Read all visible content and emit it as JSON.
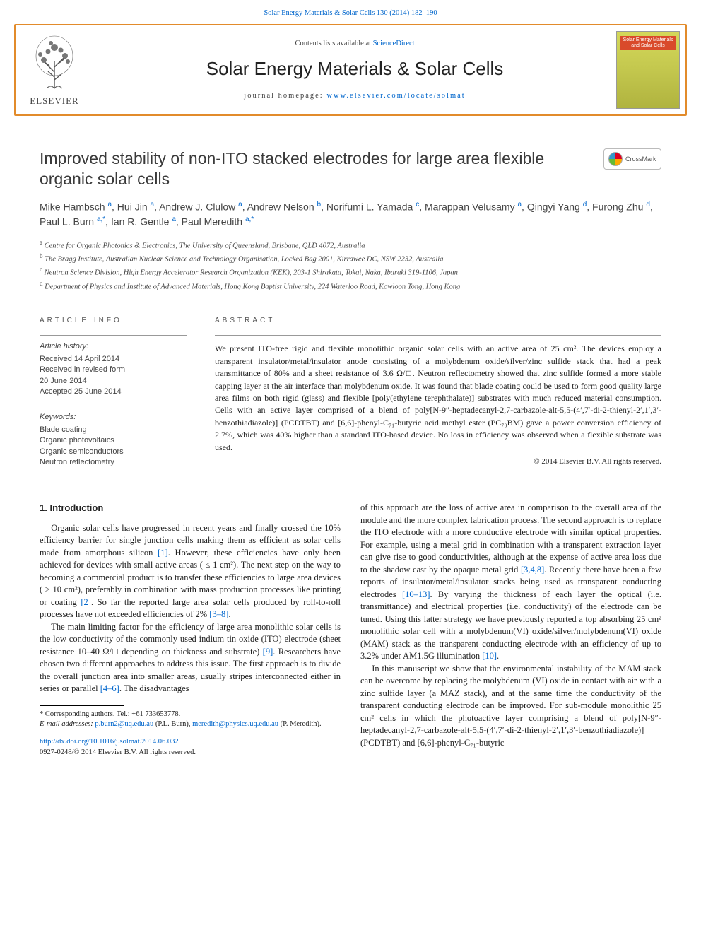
{
  "topLink": {
    "prefix": "",
    "linkText": "Solar Energy Materials & Solar Cells 130 (2014) 182–190"
  },
  "header": {
    "contentsPrefix": "Contents lists available at ",
    "contentsLink": "ScienceDirect",
    "journalName": "Solar Energy Materials & Solar Cells",
    "homepagePrefix": "journal homepage: ",
    "homepageLink": "www.elsevier.com/locate/solmat",
    "elsevierWordmark": "ELSEVIER",
    "coverLabel": "Solar Energy Materials and Solar Cells"
  },
  "article": {
    "title": "Improved stability of non-ITO stacked electrodes for large area flexible organic solar cells",
    "crossmarkLabel": "CrossMark",
    "authorsHtml": "Mike Hambsch <sup>a</sup>, Hui Jin <sup>a</sup>, Andrew J. Clulow <sup>a</sup>, Andrew Nelson <sup>b</sup>, Norifumi L. Yamada <sup>c</sup>, Marappan Velusamy <sup>a</sup>, Qingyi Yang <sup>d</sup>, Furong Zhu <sup>d</sup>, Paul L. Burn <sup>a,*</sup>, Ian R. Gentle <sup>a</sup>, Paul Meredith <sup>a,*</sup>",
    "affiliations": [
      {
        "sup": "a",
        "text": "Centre for Organic Photonics & Electronics, The University of Queensland, Brisbane, QLD 4072, Australia"
      },
      {
        "sup": "b",
        "text": "The Bragg Institute, Australian Nuclear Science and Technology Organisation, Locked Bag 2001, Kirrawee DC, NSW 2232, Australia"
      },
      {
        "sup": "c",
        "text": "Neutron Science Division, High Energy Accelerator Research Organization (KEK), 203-1 Shirakata, Tokai, Naka, Ibaraki 319-1106, Japan"
      },
      {
        "sup": "d",
        "text": "Department of Physics and Institute of Advanced Materials, Hong Kong Baptist University, 224 Waterloo Road, Kowloon Tong, Hong Kong"
      }
    ]
  },
  "meta": {
    "infoHead": "ARTICLE INFO",
    "abstractHead": "ABSTRACT",
    "historyLabel": "Article history:",
    "history": [
      "Received 14 April 2014",
      "Received in revised form",
      "20 June 2014",
      "Accepted 25 June 2014"
    ],
    "keywordsLabel": "Keywords:",
    "keywords": [
      "Blade coating",
      "Organic photovoltaics",
      "Organic semiconductors",
      "Neutron reflectometry"
    ],
    "abstract": "We present ITO-free rigid and flexible monolithic organic solar cells with an active area of 25 cm². The devices employ a transparent insulator/metal/insulator anode consisting of a molybdenum oxide/silver/zinc sulfide stack that had a peak transmittance of 80% and a sheet resistance of 3.6 Ω/□. Neutron reflectometry showed that zinc sulfide formed a more stable capping layer at the air interface than molybdenum oxide. It was found that blade coating could be used to form good quality large area films on both rigid (glass) and flexible [poly(ethylene terephthalate)] substrates with much reduced material consumption. Cells with an active layer comprised of a blend of poly[N-9″-heptadecanyl-2,7-carbazole-alt-5,5-(4′,7′-di-2-thienyl-2′,1′,3′-benzothiadiazole)] (PCDTBT) and [6,6]-phenyl-C₇₁-butyric acid methyl ester (PC₇₀BM) gave a power conversion efficiency of 2.7%, which was 40% higher than a standard ITO-based device. No loss in efficiency was observed when a flexible substrate was used.",
    "copyright": "© 2014 Elsevier B.V. All rights reserved."
  },
  "body": {
    "sectionHead": "1.  Introduction",
    "paragraphs": [
      "Organic solar cells have progressed in recent years and finally crossed the 10% efficiency barrier for single junction cells making them as efficient as solar cells made from amorphous silicon <a class='ref' href='#'>[1]</a>. However, these efficiencies have only been achieved for devices with small active areas ( ≤ 1 cm²). The next step on the way to becoming a commercial product is to transfer these efficiencies to large area devices ( ≥ 10 cm²), preferably in combination with mass production processes like printing or coating <a class='ref' href='#'>[2]</a>. So far the reported large area solar cells produced by roll-to-roll processes have not exceeded efficiencies of 2% <a class='ref' href='#'>[3–8]</a>.",
      "The main limiting factor for the efficiency of large area monolithic solar cells is the low conductivity of the commonly used indium tin oxide (ITO) electrode (sheet resistance 10–40 Ω/□ depending on thickness and substrate) <a class='ref' href='#'>[9]</a>. Researchers have chosen two different approaches to address this issue. The first approach is to divide the overall junction area into smaller areas, usually stripes interconnected either in series or parallel <a class='ref' href='#'>[4–6]</a>. The disadvantages",
      "of this approach are the loss of active area in comparison to the overall area of the module and the more complex fabrication process. The second approach is to replace the ITO electrode with a more conductive electrode with similar optical properties. For example, using a metal grid in combination with a transparent extraction layer can give rise to good conductivities, although at the expense of active area loss due to the shadow cast by the opaque metal grid <a class='ref' href='#'>[3,4,8]</a>. Recently there have been a few reports of insulator/metal/insulator stacks being used as transparent conducting electrodes <a class='ref' href='#'>[10–13]</a>. By varying the thickness of each layer the optical (i.e. transmittance) and electrical properties (i.e. conductivity) of the electrode can be tuned. Using this latter strategy we have previously reported a top absorbing 25 cm² monolithic solar cell with a molybdenum(VI) oxide/silver/molybdenum(VI) oxide (MAM) stack as the transparent conducting electrode with an efficiency of up to 3.2% under AM1.5G illumination <a class='ref' href='#'>[10]</a>.",
      "In this manuscript we show that the environmental instability of the MAM stack can be overcome by replacing the molybdenum (VI) oxide in contact with air with a zinc sulfide layer (a MAZ stack), and at the same time the conductivity of the transparent conducting electrode can be improved. For sub-module monolithic 25 cm² cells in which the photoactive layer comprising a blend of poly[N-9″-heptadecanyl-2,7-carbazole-alt-5,5-(4′,7′-di-2-thienyl-2′,1′,3′-benzothiadiazole)] (PCDTBT) and [6,6]-phenyl-C₇₁-butyric"
    ]
  },
  "footnotes": {
    "corrLine": "* Corresponding authors. Tel.: +61 733653778.",
    "emailLabel": "E-mail addresses: ",
    "emails": [
      {
        "addr": "p.burn2@uq.edu.au",
        "who": " (P.L. Burn),"
      },
      {
        "addr": "meredith@physics.uq.edu.au",
        "who": " (P. Meredith)."
      }
    ],
    "doi": "http://dx.doi.org/10.1016/j.solmat.2014.06.032",
    "issn": "0927-0248/© 2014 Elsevier B.V. All rights reserved."
  },
  "colors": {
    "link": "#0066cc",
    "bandBorder": "#e28b2b",
    "coverRed": "#d94a2b"
  }
}
